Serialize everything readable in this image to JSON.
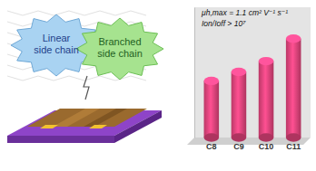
{
  "chart_data": {
    "type": "bar",
    "categories": [
      "C8",
      "C9",
      "C10",
      "C11"
    ],
    "values": [
      0.63,
      0.73,
      0.85,
      1.1
    ],
    "color": "#e8457f",
    "ylim": [
      0,
      1.45
    ],
    "tick_labels": "x",
    "annotations": [
      "μh,max = 1.1 cm² V⁻¹ s⁻¹",
      "Ion/Ioff > 10⁷",
      "Linear side chain",
      "Branched side chain"
    ]
  }
}
